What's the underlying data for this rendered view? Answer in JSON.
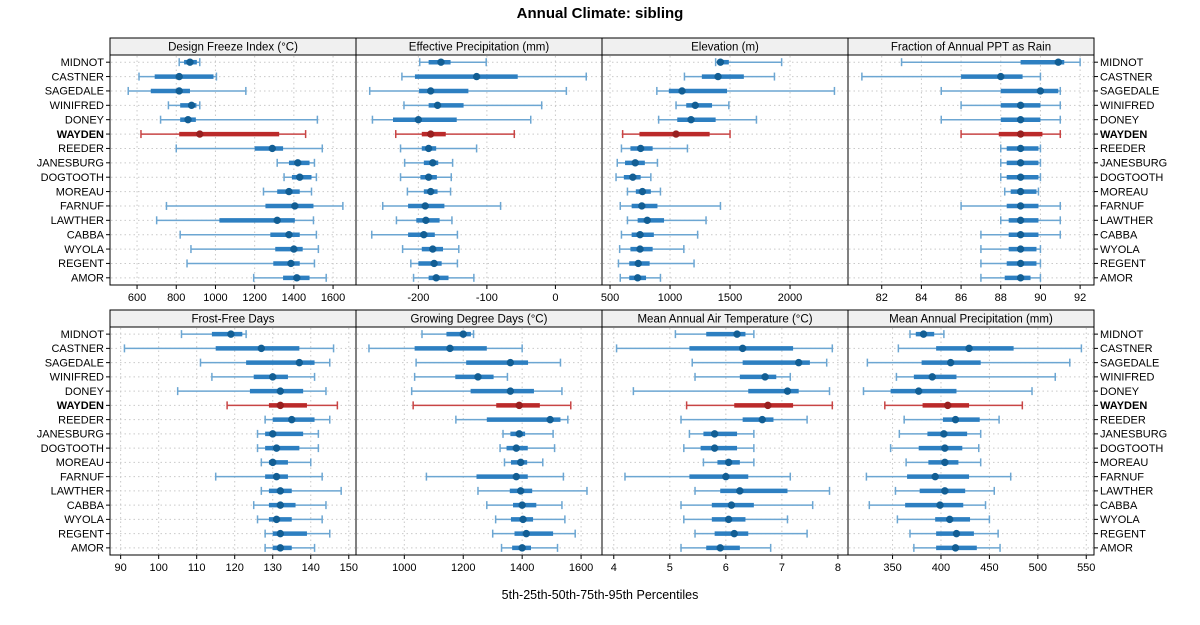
{
  "title": "Annual Climate: sibling",
  "caption": "5th-25th-50th-75th-95th Percentiles",
  "colors": {
    "blue_whisker": "#6ca6d2",
    "blue_bar": "#2d7fc1",
    "blue_dot": "#125e94",
    "red_whisker": "#c84545",
    "red_bar": "#bb2a2a",
    "red_dot": "#991f1f",
    "grid": "#c9c9c9",
    "panel_border": "#000000",
    "header_fill": "#f0f0f0",
    "text": "#000000"
  },
  "chart_data": {
    "type": "percentile-dotplot-trellis",
    "percentiles": [
      5,
      25,
      50,
      75,
      95
    ],
    "legend_note": "5th-25th-50th-75th-95th Percentiles",
    "grid": true,
    "stations": [
      "MIDNOT",
      "CASTNER",
      "SAGEDALE",
      "WINIFRED",
      "DONEY",
      "WAYDEN",
      "REEDER",
      "JANESBURG",
      "DOGTOOTH",
      "MOREAU",
      "FARNUF",
      "LAWTHER",
      "CABBA",
      "WYOLA",
      "REGENT",
      "AMOR"
    ],
    "highlight_station": "WAYDEN",
    "panels": [
      {
        "title": "Design Freeze Index (°C)",
        "ticks": [
          600,
          800,
          1000,
          1200,
          1400,
          1600
        ],
        "xlim": [
          462,
          1717
        ],
        "values": [
          [
            815,
            840,
            870,
            905,
            920
          ],
          [
            610,
            690,
            815,
            990,
            1005
          ],
          [
            555,
            670,
            815,
            870,
            1155
          ],
          [
            760,
            820,
            878,
            903,
            920
          ],
          [
            720,
            820,
            860,
            900,
            1520
          ],
          [
            620,
            815,
            920,
            1325,
            1460
          ],
          [
            800,
            1200,
            1290,
            1345,
            1545
          ],
          [
            1315,
            1375,
            1420,
            1480,
            1505
          ],
          [
            1350,
            1390,
            1430,
            1490,
            1515
          ],
          [
            1245,
            1315,
            1375,
            1430,
            1490
          ],
          [
            750,
            1255,
            1405,
            1500,
            1650
          ],
          [
            700,
            1020,
            1315,
            1405,
            1500
          ],
          [
            820,
            1280,
            1375,
            1430,
            1515
          ],
          [
            875,
            1305,
            1400,
            1445,
            1525
          ],
          [
            855,
            1295,
            1385,
            1430,
            1505
          ],
          [
            1195,
            1345,
            1415,
            1480,
            1565
          ]
        ]
      },
      {
        "title": "Effective Precipitation (mm)",
        "ticks": [
          -200,
          -100,
          0
        ],
        "xlim": [
          -291,
          68
        ],
        "values": [
          [
            -198,
            -185,
            -167,
            -153,
            -101
          ],
          [
            -224,
            -205,
            -115,
            -55,
            45
          ],
          [
            -271,
            -199,
            -182,
            -127,
            16
          ],
          [
            -221,
            -185,
            -172,
            -134,
            -20
          ],
          [
            -267,
            -237,
            -200,
            -144,
            -36
          ],
          [
            -233,
            -195,
            -182,
            -160,
            -60
          ],
          [
            -226,
            -195,
            -185,
            -174,
            -115
          ],
          [
            -220,
            -192,
            -179,
            -171,
            -150
          ],
          [
            -226,
            -197,
            -185,
            -173,
            -152
          ],
          [
            -216,
            -192,
            -182,
            -172,
            -153
          ],
          [
            -252,
            -215,
            -190,
            -162,
            -80
          ],
          [
            -232,
            -203,
            -189,
            -169,
            -151
          ],
          [
            -268,
            -215,
            -192,
            -176,
            -143
          ],
          [
            -223,
            -195,
            -179,
            -164,
            -141
          ],
          [
            -211,
            -200,
            -177,
            -166,
            -143
          ],
          [
            -207,
            -185,
            -174,
            -156,
            -119
          ]
        ]
      },
      {
        "title": "Elevation (m)",
        "ticks": [
          500,
          1000,
          1500,
          2000
        ],
        "xlim": [
          433,
          2483
        ],
        "values": [
          [
            1380,
            1395,
            1420,
            1490,
            1930
          ],
          [
            1120,
            1265,
            1400,
            1615,
            1870
          ],
          [
            890,
            990,
            1100,
            1475,
            2370
          ],
          [
            1050,
            1135,
            1210,
            1350,
            1490
          ],
          [
            905,
            1060,
            1175,
            1380,
            1720
          ],
          [
            605,
            745,
            1050,
            1330,
            1500
          ],
          [
            595,
            670,
            755,
            855,
            1145
          ],
          [
            560,
            625,
            710,
            790,
            895
          ],
          [
            550,
            615,
            690,
            755,
            840
          ],
          [
            645,
            715,
            770,
            840,
            920
          ],
          [
            585,
            680,
            765,
            895,
            1420
          ],
          [
            645,
            730,
            810,
            950,
            1300
          ],
          [
            595,
            680,
            750,
            865,
            1230
          ],
          [
            580,
            670,
            750,
            855,
            1115
          ],
          [
            570,
            660,
            735,
            830,
            1200
          ],
          [
            585,
            660,
            730,
            800,
            920
          ]
        ]
      },
      {
        "title": "Fraction of Annual PPT as Rain",
        "ticks": [
          82,
          84,
          86,
          88,
          90,
          92
        ],
        "xlim": [
          80.3,
          92.7
        ],
        "values": [
          [
            83,
            89,
            90.9,
            91.2,
            92
          ],
          [
            81,
            86,
            88,
            89.1,
            90
          ],
          [
            85,
            88,
            90,
            90.9,
            91
          ],
          [
            86,
            88,
            89,
            90,
            91
          ],
          [
            85,
            88,
            89,
            90,
            91
          ],
          [
            86,
            87.9,
            89,
            90.1,
            91
          ],
          [
            88,
            88.3,
            89,
            89.9,
            90
          ],
          [
            88,
            88.3,
            89,
            89.9,
            90
          ],
          [
            88,
            88.3,
            89,
            89.9,
            90
          ],
          [
            88.2,
            88.5,
            89,
            89.8,
            89.9
          ],
          [
            86,
            88.3,
            89,
            89.9,
            91
          ],
          [
            88,
            88.4,
            89,
            89.9,
            91
          ],
          [
            87,
            88.4,
            89,
            89.9,
            91
          ],
          [
            87,
            88.4,
            89,
            89.8,
            90
          ],
          [
            87,
            88.3,
            89,
            89.8,
            90
          ],
          [
            87,
            88.2,
            89,
            89.5,
            90
          ]
        ]
      },
      {
        "title": "Frost-Free Days",
        "ticks": [
          90,
          100,
          110,
          120,
          130,
          140,
          150
        ],
        "xlim": [
          87.2,
          151.9
        ],
        "values": [
          [
            106,
            114,
            119,
            122,
            123
          ],
          [
            91,
            115,
            127,
            137,
            146
          ],
          [
            111,
            123,
            137,
            141,
            145
          ],
          [
            114,
            125,
            130,
            134,
            141
          ],
          [
            105,
            124,
            132,
            138,
            144
          ],
          [
            118,
            129,
            132,
            139,
            147
          ],
          [
            128,
            130,
            135,
            141,
            145
          ],
          [
            126,
            128,
            130,
            138,
            142
          ],
          [
            126,
            128,
            131,
            137,
            142
          ],
          [
            127,
            129,
            130,
            134,
            140
          ],
          [
            115,
            128,
            131,
            134,
            143
          ],
          [
            127,
            129,
            132,
            135,
            148
          ],
          [
            125,
            129,
            132,
            136,
            144
          ],
          [
            126,
            129,
            131,
            135,
            143
          ],
          [
            128,
            130,
            132,
            139,
            145
          ],
          [
            128,
            130,
            132,
            135,
            141
          ]
        ]
      },
      {
        "title": "Growing Degree Days (°C)",
        "ticks": [
          1000,
          1200,
          1400,
          1600
        ],
        "xlim": [
          836,
          1671
        ],
        "values": [
          [
            1060,
            1143,
            1200,
            1226,
            1235
          ],
          [
            880,
            1035,
            1155,
            1280,
            1400
          ],
          [
            1040,
            1210,
            1360,
            1420,
            1530
          ],
          [
            1035,
            1173,
            1250,
            1303,
            1350
          ],
          [
            1025,
            1225,
            1360,
            1440,
            1535
          ],
          [
            1030,
            1312,
            1390,
            1460,
            1565
          ],
          [
            1175,
            1280,
            1495,
            1530,
            1555
          ],
          [
            1335,
            1360,
            1390,
            1410,
            1505
          ],
          [
            1325,
            1347,
            1380,
            1419,
            1510
          ],
          [
            1340,
            1362,
            1395,
            1417,
            1470
          ],
          [
            1075,
            1245,
            1380,
            1419,
            1540
          ],
          [
            1250,
            1358,
            1395,
            1434,
            1620
          ],
          [
            1280,
            1369,
            1400,
            1448,
            1535
          ],
          [
            1310,
            1362,
            1403,
            1437,
            1545
          ],
          [
            1300,
            1374,
            1414,
            1505,
            1580
          ],
          [
            1330,
            1366,
            1400,
            1430,
            1520
          ]
        ]
      },
      {
        "title": "Mean Annual Air Temperature (°C)",
        "ticks": [
          4,
          5,
          6,
          7,
          8
        ],
        "xlim": [
          3.79,
          8.18
        ],
        "values": [
          [
            5.1,
            5.65,
            6.2,
            6.35,
            6.5
          ],
          [
            4.05,
            5.35,
            6.3,
            7.2,
            7.9
          ],
          [
            5.4,
            6.3,
            7.3,
            7.5,
            7.8
          ],
          [
            5.45,
            6.25,
            6.7,
            6.9,
            7.15
          ],
          [
            4.35,
            6.4,
            7.1,
            7.3,
            7.85
          ],
          [
            5.3,
            6.15,
            6.75,
            7.2,
            7.9
          ],
          [
            5.2,
            6.3,
            6.65,
            6.85,
            7.45
          ],
          [
            5.35,
            5.6,
            5.8,
            6.2,
            6.5
          ],
          [
            5.25,
            5.55,
            5.8,
            6.2,
            6.5
          ],
          [
            5.6,
            5.85,
            6.05,
            6.25,
            6.5
          ],
          [
            4.2,
            5.35,
            6.0,
            6.4,
            7.15
          ],
          [
            5.45,
            5.9,
            6.25,
            7.1,
            7.85
          ],
          [
            5.2,
            5.75,
            6.1,
            6.5,
            7.55
          ],
          [
            5.25,
            5.75,
            6.05,
            6.35,
            7.1
          ],
          [
            5.45,
            5.8,
            6.15,
            6.4,
            7.45
          ],
          [
            5.2,
            5.65,
            5.9,
            6.25,
            6.8
          ]
        ]
      },
      {
        "title": "Mean Annual Precipitation (mm)",
        "ticks": [
          350,
          400,
          450,
          500,
          550
        ],
        "xlim": [
          304,
          558
        ],
        "values": [
          [
            368,
            374,
            382,
            393,
            403
          ],
          [
            356,
            395,
            429,
            475,
            545
          ],
          [
            324,
            380,
            410,
            441,
            533
          ],
          [
            354,
            372,
            391,
            416,
            518
          ],
          [
            320,
            348,
            377,
            416,
            494
          ],
          [
            342,
            381,
            407,
            429,
            484
          ],
          [
            362,
            402,
            415,
            440,
            460
          ],
          [
            357,
            386,
            403,
            427,
            441
          ],
          [
            348,
            377,
            404,
            422,
            439
          ],
          [
            364,
            387,
            404,
            418,
            441
          ],
          [
            323,
            365,
            394,
            429,
            472
          ],
          [
            353,
            378,
            404,
            425,
            455
          ],
          [
            326,
            363,
            399,
            423,
            446
          ],
          [
            355,
            394,
            409,
            430,
            450
          ],
          [
            368,
            395,
            416,
            434,
            459
          ],
          [
            372,
            395,
            415,
            437,
            461
          ]
        ]
      }
    ]
  }
}
